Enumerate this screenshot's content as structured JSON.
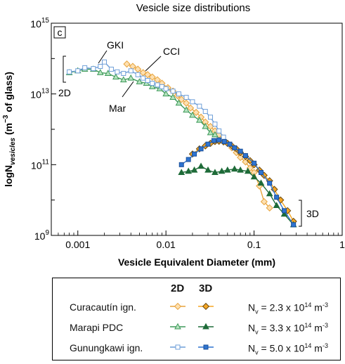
{
  "chart_data": {
    "type": "line",
    "title": "Vesicle size distributions",
    "panel_label": "c",
    "xlabel": "Vesicle Equivalent Diameter (mm)",
    "ylabel_main": "logN",
    "ylabel_sub": "vesicles",
    "ylabel_tail": " (m",
    "ylabel_exp": "−3",
    "ylabel_end": " of glass)",
    "x_scale": "log",
    "y_scale": "log",
    "xlim": [
      0.0005,
      1
    ],
    "ylim": [
      1000000000.0,
      1000000000000000.0
    ],
    "x_ticks": [
      {
        "value": 0.001,
        "label": "0.001"
      },
      {
        "value": 0.01,
        "label": "0.01"
      },
      {
        "value": 0.1,
        "label": "0.1"
      },
      {
        "value": 1,
        "label": "1"
      }
    ],
    "y_ticks": [
      {
        "value": 1000000000.0,
        "base": "10",
        "exp": "9"
      },
      {
        "value": 100000000000.0,
        "base": "10",
        "exp": "11"
      },
      {
        "value": 10000000000000.0,
        "base": "10",
        "exp": "13"
      },
      {
        "value": 1000000000000000.0,
        "base": "10",
        "exp": "15"
      }
    ],
    "annotations": {
      "gki": "GKI",
      "cci": "CCI",
      "mar": "Mar",
      "label_2d": "2D",
      "label_3d": "3D"
    },
    "series": [
      {
        "name": "Curacautín ign.",
        "dim": "2D",
        "marker": "diamond",
        "fill": "#fde0b2",
        "stroke": "#e8a43c",
        "x": [
          0.0036,
          0.0042,
          0.0048,
          0.0055,
          0.0062,
          0.007,
          0.008,
          0.009,
          0.0105,
          0.012,
          0.0135,
          0.015,
          0.017,
          0.019,
          0.022,
          0.025,
          0.028,
          0.032,
          0.036,
          0.04,
          0.045,
          0.05,
          0.056,
          0.063,
          0.07,
          0.08,
          0.09,
          0.1,
          0.115,
          0.13,
          0.15
        ],
        "y": [
          70000000000000.0,
          60000000000000.0,
          50000000000000.0,
          40000000000000.0,
          35000000000000.0,
          30000000000000.0,
          25000000000000.0,
          20000000000000.0,
          15000000000000.0,
          12000000000000.0,
          9000000000000.0,
          7000000000000.0,
          5500000000000.0,
          4000000000000.0,
          3000000000000.0,
          2200000000000.0,
          1600000000000.0,
          1200000000000.0,
          900000000000.0,
          700000000000.0,
          500000000000.0,
          400000000000.0,
          300000000000.0,
          220000000000.0,
          160000000000.0,
          120000000000.0,
          80000000000.0,
          60000000000.0,
          25000000000.0,
          9000000000.0,
          6000000000.0
        ]
      },
      {
        "name": "Curacautín ign.",
        "dim": "3D",
        "marker": "diamond",
        "fill": "#f5a623",
        "stroke": "#6b4a10",
        "x": [
          0.02,
          0.024,
          0.028,
          0.032,
          0.036,
          0.04,
          0.045,
          0.05,
          0.056,
          0.063,
          0.07,
          0.08,
          0.09,
          0.1,
          0.115,
          0.13,
          0.15,
          0.17,
          0.2,
          0.24,
          0.28
        ],
        "y": [
          200000000000.0,
          280000000000.0,
          340000000000.0,
          400000000000.0,
          450000000000.0,
          460000000000.0,
          440000000000.0,
          400000000000.0,
          340000000000.0,
          280000000000.0,
          220000000000.0,
          170000000000.0,
          130000000000.0,
          100000000000.0,
          70000000000.0,
          50000000000.0,
          35000000000.0,
          20000000000.0,
          10000000000.0,
          5000000000.0,
          2500000000.0
        ]
      },
      {
        "name": "Marapi PDC",
        "dim": "2D",
        "marker": "triangle",
        "fill": "#b5e3bf",
        "stroke": "#3f9a5a",
        "x": [
          0.0008,
          0.001,
          0.0012,
          0.0015,
          0.0018,
          0.0022,
          0.0027,
          0.0033,
          0.004,
          0.005,
          0.006,
          0.007,
          0.0085,
          0.01,
          0.012,
          0.014,
          0.017,
          0.02,
          0.024,
          0.028,
          0.032,
          0.036
        ],
        "y": [
          40000000000000.0,
          45000000000000.0,
          50000000000000.0,
          50000000000000.0,
          40000000000000.0,
          38000000000000.0,
          30000000000000.0,
          25000000000000.0,
          28000000000000.0,
          22000000000000.0,
          20000000000000.0,
          16000000000000.0,
          14000000000000.0,
          10000000000000.0,
          8000000000000.0,
          5500000000000.0,
          3500000000000.0,
          2500000000000.0,
          1800000000000.0,
          1200000000000.0,
          800000000000.0,
          700000000000.0
        ]
      },
      {
        "name": "Marapi PDC",
        "dim": "3D",
        "marker": "triangle",
        "fill": "#1e6b38",
        "stroke": "#1e6b38",
        "x": [
          0.015,
          0.018,
          0.021,
          0.025,
          0.03,
          0.036,
          0.043,
          0.05,
          0.06,
          0.07,
          0.085,
          0.1,
          0.12,
          0.15,
          0.18,
          0.22,
          0.28
        ],
        "y": [
          60000000000.0,
          65000000000.0,
          70000000000.0,
          90000000000.0,
          70000000000.0,
          60000000000.0,
          65000000000.0,
          70000000000.0,
          75000000000.0,
          70000000000.0,
          65000000000.0,
          45000000000.0,
          30000000000.0,
          15000000000.0,
          7000000000.0,
          4000000000.0,
          2000000000.0
        ]
      },
      {
        "name": "Gunungkawi ign.",
        "dim": "2D",
        "marker": "square",
        "fill": "#ffffff",
        "stroke": "#6f9fd8",
        "x": [
          0.0008,
          0.001,
          0.0012,
          0.0015,
          0.0018,
          0.002,
          0.0024,
          0.0028,
          0.0033,
          0.004,
          0.0048,
          0.0055,
          0.0062,
          0.007,
          0.008,
          0.009,
          0.01,
          0.012,
          0.014,
          0.017,
          0.02,
          0.024,
          0.028,
          0.032,
          0.036,
          0.04,
          0.045
        ],
        "y": [
          42000000000000.0,
          45000000000000.0,
          55000000000000.0,
          52000000000000.0,
          60000000000000.0,
          80000000000000.0,
          50000000000000.0,
          42000000000000.0,
          38000000000000.0,
          45000000000000.0,
          35000000000000.0,
          28000000000000.0,
          24000000000000.0,
          20000000000000.0,
          18000000000000.0,
          16000000000000.0,
          14000000000000.0,
          12000000000000.0,
          10000000000000.0,
          8000000000000.0,
          6000000000000.0,
          4500000000000.0,
          3200000000000.0,
          2200000000000.0,
          1400000000000.0,
          900000000000.0,
          600000000000.0
        ]
      },
      {
        "name": "Gunungkawi ign.",
        "dim": "3D",
        "marker": "square",
        "fill": "#2f74d0",
        "stroke": "#1a4f99",
        "x": [
          0.015,
          0.018,
          0.021,
          0.025,
          0.03,
          0.035,
          0.04,
          0.046,
          0.053,
          0.06,
          0.07,
          0.08,
          0.1,
          0.12,
          0.15,
          0.18,
          0.22,
          0.28
        ],
        "y": [
          100000000000.0,
          140000000000.0,
          200000000000.0,
          280000000000.0,
          380000000000.0,
          480000000000.0,
          500000000000.0,
          450000000000.0,
          380000000000.0,
          300000000000.0,
          240000000000.0,
          180000000000.0,
          110000000000.0,
          60000000000.0,
          30000000000.0,
          12000000000.0,
          5000000000.0,
          2000000000.0
        ]
      }
    ]
  },
  "legend": {
    "head_2d": "2D",
    "head_3d": "3D",
    "rows": [
      {
        "name": "Curacautín ign.",
        "nv_pre": "N",
        "nv_sub": "v",
        "nv_mid": " = 2.3 x 10",
        "nv_exp": "14",
        "nv_unit": " m",
        "nv_unit_exp": "-3"
      },
      {
        "name": "Marapi PDC",
        "nv_pre": "N",
        "nv_sub": "v",
        "nv_mid": " = 3.3 x 10",
        "nv_exp": "14",
        "nv_unit": " m",
        "nv_unit_exp": "-3"
      },
      {
        "name": "Gunungkawi ign.",
        "nv_pre": "N",
        "nv_sub": "v",
        "nv_mid": " = 5.0 x 10",
        "nv_exp": "14",
        "nv_unit": " m",
        "nv_unit_exp": "-3"
      }
    ]
  }
}
